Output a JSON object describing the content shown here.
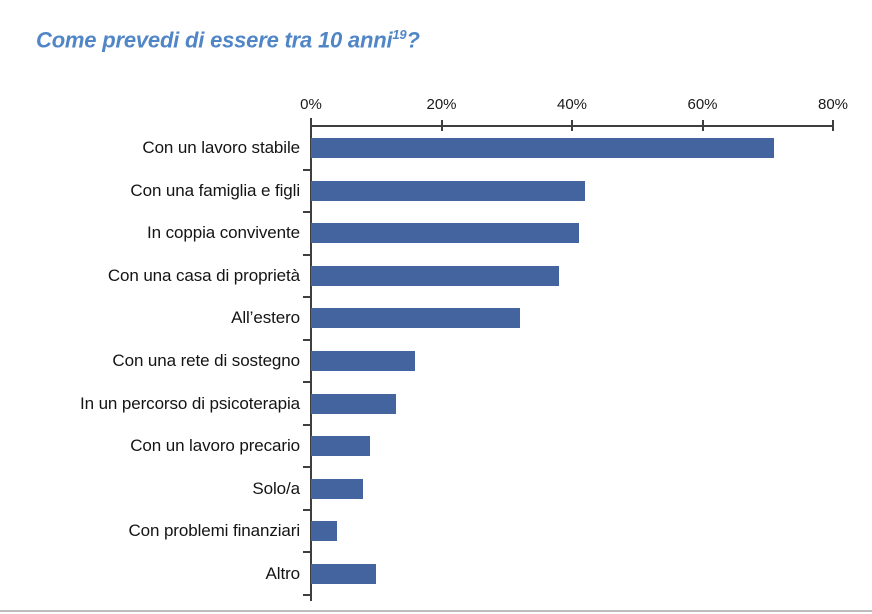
{
  "title": {
    "text": "Come prevedi di essere tra 10 anni",
    "superscript": "19",
    "suffix": "?",
    "color": "#5086C6"
  },
  "chart_data": {
    "type": "bar",
    "orientation": "horizontal",
    "title": "Come prevedi di essere tra 10 anni?",
    "categories": [
      "Con un lavoro stabile",
      "Con una famiglia e figli",
      "In coppia convivente",
      "Con una casa di proprietà",
      "All’estero",
      "Con  una rete di sostegno",
      "In un percorso di psicoterapia",
      "Con un lavoro precario",
      "Solo/a",
      "Con problemi finanziari",
      "Altro"
    ],
    "values": [
      71,
      42,
      41,
      38,
      32,
      16,
      13,
      9,
      8,
      4,
      10
    ],
    "unit": "%",
    "xlabel": "",
    "ylabel": "",
    "x_axis": {
      "position": "top",
      "min": 0,
      "max": 80,
      "ticks": [
        "0%",
        "20%",
        "40%",
        "60%",
        "80%"
      ]
    },
    "grid": false,
    "legend": null,
    "bar_color": "#44649F",
    "axis_color": "#3F3F3F"
  }
}
